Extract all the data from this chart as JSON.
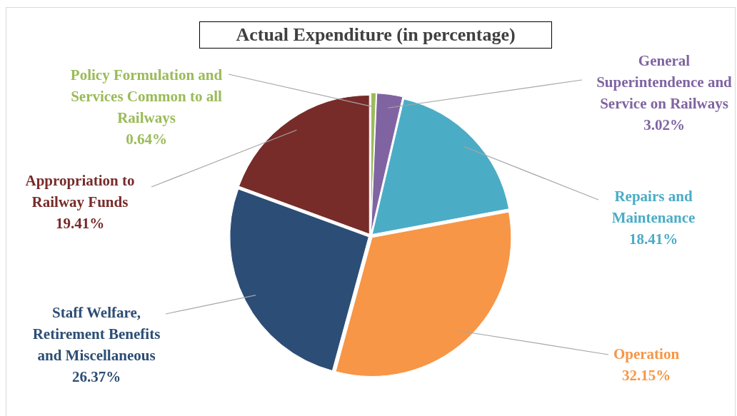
{
  "chart_data": {
    "type": "pie",
    "title": "Actual Expenditure (in percentage)",
    "categories": [
      "Policy Formulation and Services Common to all Railways",
      "General Superintendence and Service on Railways",
      "Repairs and Maintenance",
      "Operation",
      "Staff Welfare, Retirement Benefits and Miscellaneous",
      "Appropriation to Railway Funds"
    ],
    "values": [
      0.64,
      3.02,
      18.41,
      32.15,
      26.37,
      19.41
    ],
    "colors": [
      "#9bbb59",
      "#8064a2",
      "#4bacc6",
      "#f79646",
      "#2c4d75",
      "#772c2a"
    ],
    "value_labels": [
      "0.64%",
      "3.02%",
      "18.41%",
      "32.15%",
      "26.37%",
      "19.41%"
    ],
    "legend": false
  }
}
